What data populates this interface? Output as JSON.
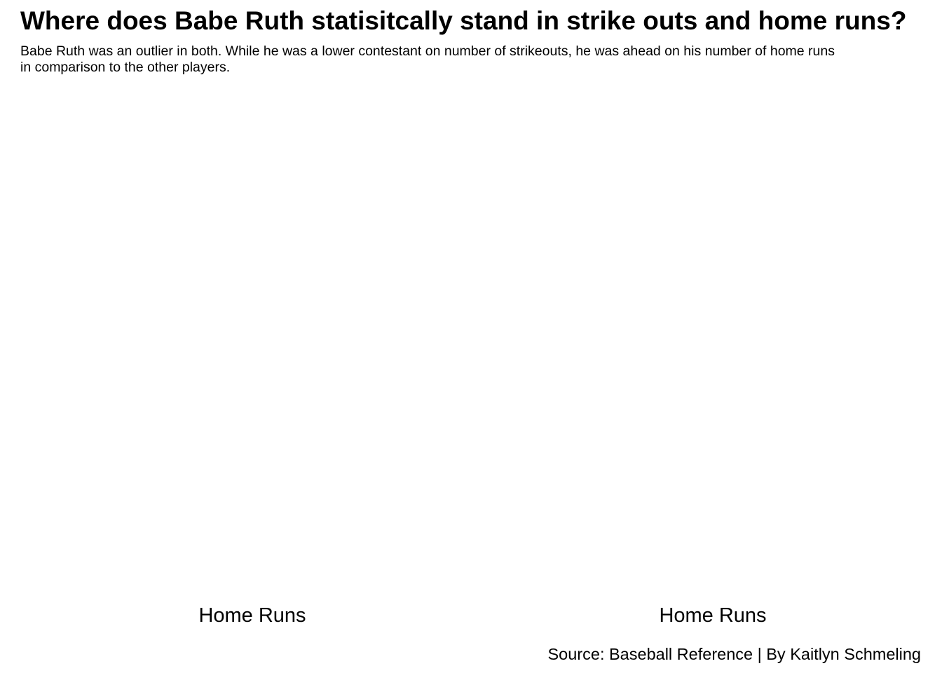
{
  "chart_data": {
    "title": "Where does Babe Ruth statisitcally stand in strike outs and home runs?",
    "subtitle": "Babe Ruth was an outlier in both. While he was a lower contestant on number of strikeouts, he was ahead on his number of home runs\n in comparison to the other players.",
    "caption": "Source: Baseball Reference | By Kaitlyn Schmeling",
    "panels": [
      {
        "xlabel": "Home Runs"
      },
      {
        "xlabel": "Home Runs"
      }
    ]
  }
}
